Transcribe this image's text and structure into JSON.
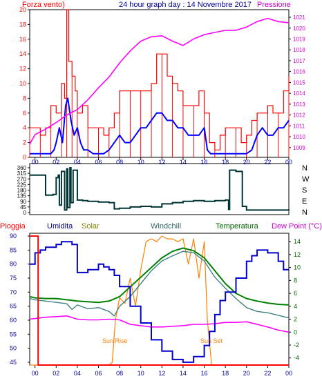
{
  "header": {
    "left_label": "Forza vento)",
    "title": "24 hour graph day : 14 Novembre 2017",
    "right_label": "Pressione"
  },
  "colors": {
    "wind": "#ff0000",
    "wind_avg": "#0000ff",
    "pressure": "#ff00ff",
    "direction": "#003333",
    "rain": "#ff0000",
    "humidity": "#0000cc",
    "solar": "#ff8000",
    "windchill": "#408080",
    "temperature": "#008000",
    "dewpoint": "#ff00ff",
    "rain_label": "#ff0000",
    "humidity_label": "#000099",
    "solar_label": "#808000",
    "windchill_label": "#336666",
    "temperature_label": "#006600",
    "dewpoint_label": "#cc00cc",
    "axis_blue": "#000099",
    "axis_right_pink": "#cc00cc",
    "axis_right_green": "#006600"
  },
  "chart_data": [
    {
      "type": "line",
      "id": "wind-pressure",
      "x_ticks": [
        "00",
        "02",
        "04",
        "06",
        "08",
        "10",
        "12",
        "14",
        "16",
        "18",
        "20",
        "22",
        "00"
      ],
      "xlim": [
        -0.5,
        24
      ],
      "y_left_ticks": [
        "0",
        "2",
        "4",
        "6",
        "8",
        "10",
        "12",
        "14",
        "16",
        "18",
        "20"
      ],
      "ylim_left": [
        0,
        20
      ],
      "y_right_ticks": [
        "1009",
        "1010",
        "1011",
        "1012",
        "1013",
        "1014",
        "1015",
        "1016",
        "1017",
        "1018",
        "1019",
        "1020",
        "1021"
      ],
      "ylim_right": [
        1008.1,
        1021.7
      ],
      "series": [
        {
          "name": "Forza vento)",
          "axis": "left",
          "style": "gust-bars",
          "x": [
            -0.5,
            0,
            0.5,
            1,
            1.5,
            2,
            2.5,
            2.8,
            3,
            3.2,
            3.5,
            3.8,
            4,
            4.5,
            5,
            5.5,
            6,
            6.5,
            7,
            7.5,
            8,
            8.5,
            9,
            9.5,
            10,
            10.5,
            11,
            11.5,
            12,
            12.5,
            13,
            13.5,
            14,
            14.5,
            15,
            15.5,
            16,
            16.5,
            17,
            17.5,
            18,
            18.5,
            19,
            19.5,
            20,
            20.5,
            21,
            21.5,
            22,
            22.5,
            23,
            23.5,
            24
          ],
          "values": [
            4,
            4,
            3,
            4,
            7,
            6,
            10,
            8,
            20,
            13,
            11,
            9,
            6,
            7,
            4,
            4,
            4,
            3,
            4,
            6,
            9,
            9,
            9,
            9,
            9,
            9,
            10,
            14,
            14,
            11,
            10,
            9,
            7,
            7,
            7,
            9,
            6,
            2,
            1,
            3,
            4,
            4,
            4,
            2,
            3,
            5,
            6,
            6,
            7,
            6,
            6,
            9,
            11
          ]
        },
        {
          "name": "",
          "axis": "left",
          "style": "line",
          "x": [
            -0.5,
            0,
            0.5,
            1,
            1.5,
            1.8,
            2,
            2.3,
            2.6,
            2.9,
            3.1,
            3.4,
            3.7,
            4,
            4.3,
            4.6,
            5,
            5.5,
            6,
            6.5,
            7,
            7.5,
            8,
            8.5,
            9,
            9.5,
            10,
            10.5,
            11,
            11.5,
            12,
            12.5,
            13,
            13.5,
            14,
            14.5,
            15,
            15.5,
            16,
            16.3,
            16.6,
            17,
            17.5,
            18,
            18.5,
            19,
            19.5,
            20,
            20.5,
            21,
            21.5,
            22,
            22.5,
            23,
            23.5,
            24
          ],
          "values": [
            0.5,
            0.5,
            0.5,
            0.5,
            0.5,
            1,
            2,
            4,
            2,
            7,
            8,
            5,
            3,
            4,
            2,
            1,
            1,
            0.5,
            0.5,
            0.5,
            1,
            2,
            3,
            2,
            2,
            3,
            4,
            4,
            5,
            6,
            6,
            5,
            5,
            4,
            4,
            3,
            3,
            3,
            4,
            1,
            0.5,
            0.5,
            0.5,
            0.5,
            0.5,
            0.5,
            0.5,
            0.5,
            1,
            3,
            4,
            3,
            3,
            4,
            4,
            5
          ]
        },
        {
          "name": "Pressione",
          "axis": "right",
          "style": "line",
          "x": [
            -0.5,
            0,
            1,
            2,
            3,
            4,
            5,
            6,
            7,
            8,
            9,
            10,
            11,
            12,
            13,
            14,
            15,
            16,
            17,
            18,
            19,
            20,
            21,
            22,
            23,
            24
          ],
          "values": [
            1009.3,
            1010.2,
            1010.7,
            1011.3,
            1012.0,
            1012.5,
            1013.4,
            1014.5,
            1015.5,
            1016.8,
            1017.9,
            1018.8,
            1019.2,
            1019.3,
            1018.8,
            1018.4,
            1019.0,
            1019.4,
            1019.6,
            1019.8,
            1019.8,
            1020.1,
            1020.6,
            1020.9,
            1020.6,
            1020.5
          ]
        }
      ]
    },
    {
      "type": "line",
      "id": "wind-direction",
      "xlim": [
        -0.5,
        24
      ],
      "y_left_ticks": [
        "0",
        "45",
        "90",
        "135",
        "180",
        "225",
        "270",
        "315",
        "360"
      ],
      "ylim": [
        0,
        360
      ],
      "y_right_ticks": [
        "N",
        "W",
        "S",
        "E",
        "N"
      ],
      "series": [
        {
          "name": "",
          "x": [
            -0.5,
            0.5,
            1,
            1.7,
            2,
            2.2,
            2.3,
            2.5,
            2.8,
            3,
            3.1,
            3.3,
            3.4,
            3.6,
            4,
            4.5,
            5,
            6,
            7,
            7.5,
            8,
            9,
            10,
            11,
            12,
            13,
            14,
            15,
            16,
            17,
            18,
            18.3,
            18.4,
            19,
            19.5,
            19.6,
            20,
            21,
            22,
            23,
            24
          ],
          "values": [
            300,
            300,
            140,
            145,
            280,
            300,
            60,
            330,
            20,
            350,
            40,
            360,
            80,
            340,
            100,
            95,
            90,
            85,
            80,
            30,
            35,
            45,
            50,
            45,
            70,
            80,
            90,
            95,
            90,
            95,
            100,
            25,
            340,
            330,
            330,
            50,
            20,
            20,
            20,
            20,
            15
          ]
        }
      ]
    },
    {
      "type": "line",
      "id": "temperature-humidity",
      "header_labels": [
        "Pioggia",
        "Umidita",
        "Solar",
        "Windchill",
        "Temperatura",
        "Dew Point (°C)"
      ],
      "annotations": [
        "Sun Rise",
        "Sun Set"
      ],
      "xlim": [
        -0.5,
        24
      ],
      "y_left_ticks": [
        "45",
        "50",
        "55",
        "60",
        "65",
        "70",
        "75",
        "80",
        "85",
        "90"
      ],
      "ylim_left": [
        44,
        91
      ],
      "y_right_ticks": [
        "-4",
        "-2",
        "0",
        "2",
        "4",
        "6",
        "8",
        "10",
        "12",
        "14"
      ],
      "ylim_right": [
        -5.1,
        15.3
      ],
      "series": [
        {
          "name": "Pioggia",
          "axis": "left",
          "x": [
            -0.5,
            0.3,
            0.3,
            24
          ],
          "values": [
            90,
            90,
            44,
            44
          ]
        },
        {
          "name": "Umidita",
          "axis": "left",
          "x": [
            -0.5,
            0,
            0.5,
            1,
            2,
            2.5,
            3,
            3.5,
            4,
            5,
            6,
            6.5,
            7,
            7.5,
            8,
            9,
            10,
            11,
            12,
            13,
            14,
            15,
            16,
            16.5,
            17,
            17.5,
            18,
            19,
            20,
            20.5,
            21,
            22,
            23,
            23.5,
            24
          ],
          "values": [
            80,
            84,
            85,
            86,
            87,
            88,
            88,
            87,
            77,
            78,
            80,
            79,
            78,
            76,
            72,
            65,
            59,
            53,
            49,
            46,
            45,
            47,
            51,
            56,
            62,
            67,
            70,
            75,
            81,
            83,
            85,
            84,
            81,
            78,
            78
          ]
        },
        {
          "name": "Solar",
          "axis": "left",
          "x": [
            -0.5,
            7,
            7.3,
            7.6,
            8,
            8.5,
            9,
            9.5,
            10,
            10.5,
            11,
            11.5,
            12,
            12.5,
            13,
            13.5,
            14,
            14.5,
            15,
            15.5,
            16,
            16.3,
            16.7,
            17,
            24
          ],
          "values": [
            44,
            44,
            45,
            60,
            68,
            66,
            75,
            65,
            78,
            88,
            89,
            88,
            90,
            89,
            89,
            88,
            89,
            80,
            89,
            75,
            88,
            60,
            44,
            44,
            44
          ]
        },
        {
          "name": "Windchill",
          "axis": "right",
          "x": [
            -0.5,
            0,
            1,
            2,
            3,
            3.5,
            4,
            5,
            6,
            7,
            7.5,
            8,
            9,
            10,
            11,
            12,
            13,
            14,
            15,
            16,
            17,
            18,
            19,
            20,
            21,
            22,
            23,
            24
          ],
          "values": [
            5.2,
            5,
            4.8,
            4.6,
            4.4,
            3.5,
            4.2,
            3.6,
            3.8,
            3.2,
            2.5,
            4,
            5.5,
            7.5,
            9.5,
            11,
            11.8,
            12.5,
            12.3,
            11,
            8.5,
            6.8,
            5.2,
            3.8,
            3.2,
            3.0,
            2.6,
            2.2
          ]
        },
        {
          "name": "Temperatura",
          "axis": "right",
          "x": [
            -0.5,
            0,
            1,
            2,
            3,
            4,
            5,
            6,
            7,
            8,
            9,
            10,
            11,
            12,
            13,
            14,
            15,
            16,
            17,
            18,
            19,
            20,
            21,
            22,
            23,
            24
          ],
          "values": [
            5.5,
            5.3,
            5.2,
            5.2,
            5.0,
            4.8,
            4.7,
            4.6,
            4.8,
            5.5,
            7.0,
            8.5,
            10.0,
            11.5,
            12.5,
            13.0,
            12.6,
            11.5,
            9.5,
            7.5,
            6.0,
            5.2,
            4.8,
            4.5,
            4.3,
            4.2
          ]
        },
        {
          "name": "Dew Point (°C)",
          "axis": "right",
          "x": [
            -0.5,
            0,
            1,
            2,
            3,
            4,
            5,
            6,
            7,
            8,
            9,
            10,
            11,
            12,
            13,
            14,
            15,
            16,
            17,
            18,
            19,
            20,
            21,
            22,
            23,
            24
          ],
          "values": [
            2.0,
            2.1,
            2.3,
            2.4,
            2.5,
            2.0,
            1.9,
            1.9,
            2.0,
            1.9,
            1.2,
            1.0,
            0.8,
            0.8,
            0.9,
            1.0,
            1.2,
            1.2,
            1.3,
            1.5,
            1.5,
            1.6,
            1.2,
            0.8,
            0.3,
            0.0
          ]
        }
      ]
    }
  ]
}
